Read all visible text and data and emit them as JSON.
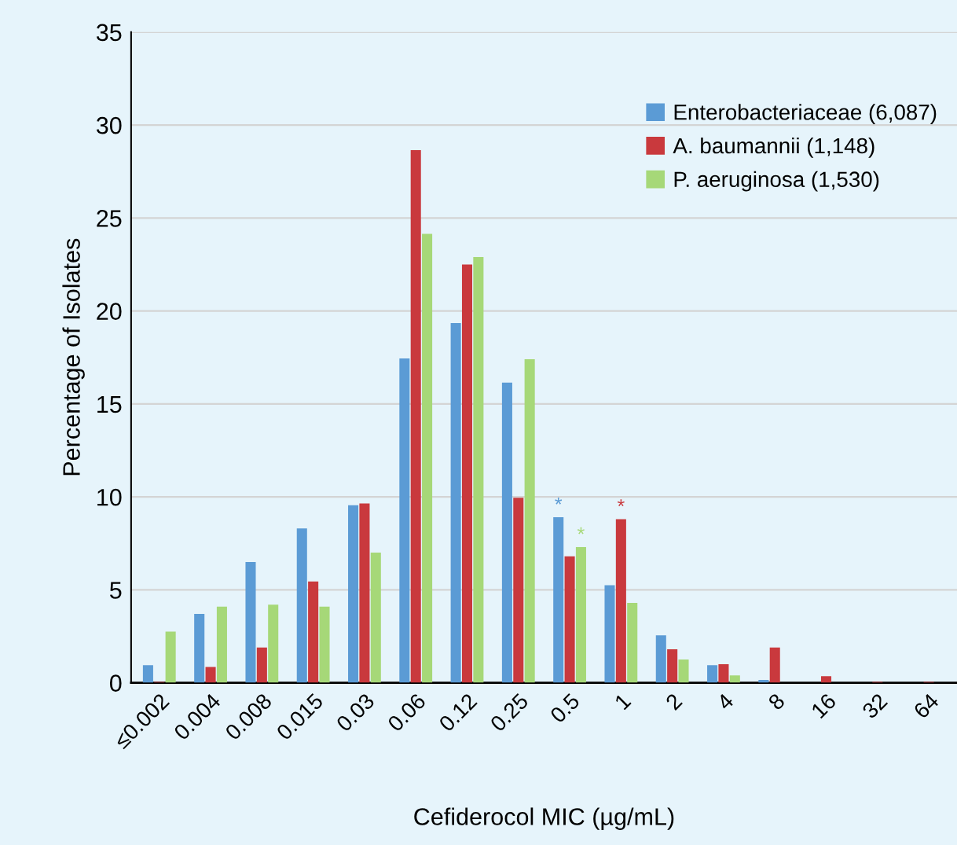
{
  "chart_data": {
    "type": "bar",
    "xlabel": "Cefiderocol MIC (µg/mL)",
    "ylabel": "Percentage of Isolates",
    "categories": [
      "≤0.002",
      "0.004",
      "0.008",
      "0.015",
      "0.03",
      "0.06",
      "0.12",
      "0.25",
      "0.5",
      "1",
      "2",
      "4",
      "8",
      "16",
      "32",
      "64"
    ],
    "series": [
      {
        "name": "Enterobacteriaceae (6,087)",
        "color": "#5b9bd5",
        "values": [
          0.95,
          3.7,
          6.5,
          8.3,
          9.55,
          17.45,
          19.35,
          16.15,
          8.9,
          5.25,
          2.55,
          0.95,
          0.15,
          0,
          0,
          0
        ]
      },
      {
        "name": "A. baumannii (1,148)",
        "color": "#c9393d",
        "values": [
          0.05,
          0.85,
          1.9,
          5.45,
          9.65,
          28.65,
          22.5,
          9.95,
          6.8,
          8.8,
          1.8,
          1.0,
          1.9,
          0.35,
          0.05,
          0.05
        ]
      },
      {
        "name": "P. aeruginosa (1,530)",
        "color": "#a6d878",
        "values": [
          2.75,
          4.1,
          4.2,
          4.1,
          7.0,
          24.15,
          22.9,
          17.4,
          7.3,
          4.3,
          1.25,
          0.4,
          0,
          0,
          0,
          0
        ]
      }
    ],
    "annotations": [
      {
        "text": "*",
        "x": "0.5",
        "y": 8.9
      },
      {
        "text": "*",
        "x": "0.5",
        "y": 7.3
      },
      {
        "text": "*",
        "x": "1",
        "y": 8.8
      }
    ],
    "ylim": [
      0,
      35
    ],
    "yticks": [
      0,
      5,
      10,
      15,
      20,
      25,
      30,
      35
    ],
    "grid": "y",
    "legend": "top right"
  }
}
